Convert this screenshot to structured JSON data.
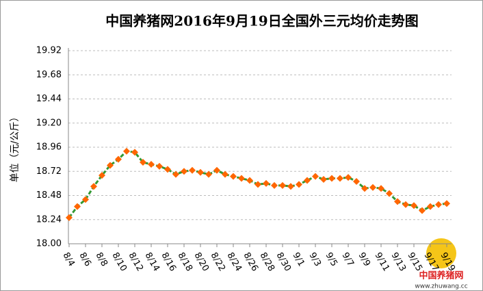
{
  "chart_data": {
    "type": "line",
    "title": "中国养猪网2016年9月19日全国外三元均价走势图",
    "y_label": "单位（元/公斤）",
    "annotations": [
      "中国养猪网",
      "www.zhuwang.cc"
    ],
    "categories": [
      "8/4",
      null,
      "8/6",
      null,
      "8/8",
      null,
      "8/10",
      null,
      "8/12",
      null,
      "8/14",
      null,
      "8/16",
      null,
      "8/18",
      null,
      "8/20",
      null,
      "8/22",
      null,
      "8/24",
      null,
      "8/26",
      null,
      "8/28",
      null,
      "8/30",
      null,
      "9/1",
      null,
      "9/3",
      null,
      "9/5",
      null,
      "9/7",
      null,
      "9/9",
      null,
      "9/11",
      null,
      "9/13",
      null,
      "9/15",
      null,
      "9/17",
      null,
      "9/19"
    ],
    "series": [
      {
        "name": "外三元",
        "color": "#339933",
        "marker_color": "#ff6600",
        "values": [
          18.26,
          18.37,
          18.44,
          18.57,
          18.68,
          18.78,
          18.84,
          18.92,
          18.91,
          18.81,
          18.79,
          18.77,
          18.74,
          18.69,
          18.72,
          18.73,
          18.71,
          18.69,
          18.73,
          18.69,
          18.67,
          18.65,
          18.63,
          18.59,
          18.6,
          18.58,
          18.58,
          18.57,
          18.59,
          18.63,
          18.67,
          18.64,
          18.65,
          18.65,
          18.66,
          18.62,
          18.55,
          18.56,
          18.55,
          18.5,
          18.42,
          18.39,
          18.38,
          18.33,
          18.37,
          18.39,
          18.4
        ]
      }
    ],
    "ylim": [
      18.0,
      19.92
    ],
    "yticks": [
      {
        "value": 18.0,
        "label": "18.00"
      },
      18.24,
      18.48,
      18.72,
      18.96,
      {
        "value": 19.2,
        "label": "19.20"
      },
      19.44,
      19.68,
      19.92
    ],
    "grid": true
  }
}
